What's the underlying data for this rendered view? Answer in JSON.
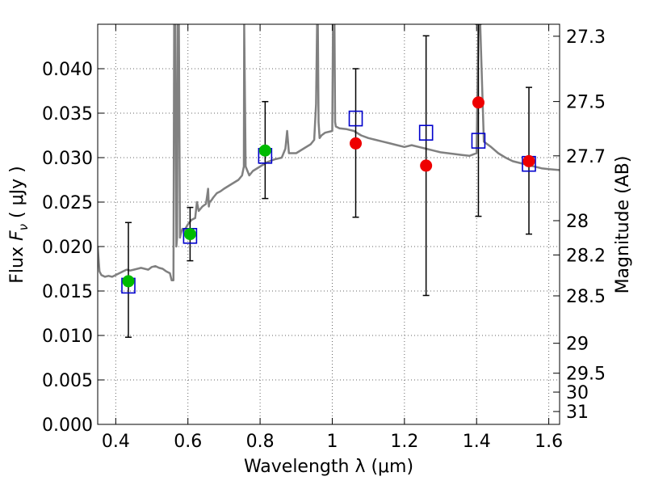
{
  "chart_data": {
    "type": "scatter",
    "xlabel": "Wavelength  λ (μm)",
    "ylabel": "Flux  F_ν  ( μJy )",
    "ylabel_parts": {
      "prefix": "Flux  ",
      "var": "F",
      "sub": "ν",
      "suffix": "  ( μJy )"
    },
    "y2label": "Magnitude (AB)",
    "xlim": [
      0.35,
      1.63
    ],
    "ylim": [
      0.0,
      0.045
    ],
    "grid": true,
    "x_ticks": [
      0.4,
      0.6,
      0.8,
      1.0,
      1.2,
      1.4,
      1.6
    ],
    "x_tick_labels": [
      "0.4",
      "0.6",
      "0.8",
      "1",
      "1.2",
      "1.4",
      "1.6"
    ],
    "y_ticks": [
      0.0,
      0.005,
      0.01,
      0.015,
      0.02,
      0.025,
      0.03,
      0.035,
      0.04
    ],
    "y_tick_labels": [
      "0.000",
      "0.005",
      "0.010",
      "0.015",
      "0.020",
      "0.025",
      "0.030",
      "0.035",
      "0.040"
    ],
    "mag_ticks": [
      {
        "mag": 27.3,
        "label": "27.3"
      },
      {
        "mag": 27.5,
        "label": "27.5"
      },
      {
        "mag": 27.7,
        "label": "27.7"
      },
      {
        "mag": 28.0,
        "label": "28"
      },
      {
        "mag": 28.2,
        "label": "28.2"
      },
      {
        "mag": 28.5,
        "label": "28.5"
      },
      {
        "mag": 29.0,
        "label": "29"
      },
      {
        "mag": 29.5,
        "label": "29.5"
      },
      {
        "mag": 30.0,
        "label": "30"
      },
      {
        "mag": 31.0,
        "label": "31"
      }
    ],
    "colors": {
      "spectrum": "#808080",
      "model_box": "#0000cc",
      "detection": "#00bb00",
      "nondetection": "#ee0000",
      "errorbar": "#000000",
      "grid": "#666666"
    },
    "series": [
      {
        "name": "observed_detections",
        "marker": "circle",
        "color": "#00bb00",
        "points": [
          {
            "x": 0.435,
            "y": 0.0161,
            "err_low": 0.0098,
            "err_high": 0.0227
          },
          {
            "x": 0.606,
            "y": 0.0214,
            "err_low": 0.0184,
            "err_high": 0.0244
          },
          {
            "x": 0.814,
            "y": 0.0308,
            "err_low": 0.0254,
            "err_high": 0.0363
          }
        ]
      },
      {
        "name": "observed_low_significance",
        "marker": "circle",
        "color": "#ee0000",
        "points": [
          {
            "x": 1.065,
            "y": 0.0316,
            "err_low": 0.0233,
            "err_high": 0.04
          },
          {
            "x": 1.26,
            "y": 0.0291,
            "err_low": 0.0145,
            "err_high": 0.0437
          },
          {
            "x": 1.405,
            "y": 0.0362,
            "err_low": 0.0234,
            "err_high": 0.045
          },
          {
            "x": 1.545,
            "y": 0.0296,
            "err_low": 0.0214,
            "err_high": 0.0379
          }
        ]
      },
      {
        "name": "model_photometry",
        "marker": "open-square",
        "color": "#0000cc",
        "points": [
          {
            "x": 0.435,
            "y": 0.0156
          },
          {
            "x": 0.606,
            "y": 0.0212
          },
          {
            "x": 0.814,
            "y": 0.0302
          },
          {
            "x": 1.065,
            "y": 0.0344
          },
          {
            "x": 1.26,
            "y": 0.0328
          },
          {
            "x": 1.405,
            "y": 0.0319
          },
          {
            "x": 1.545,
            "y": 0.0293
          }
        ]
      }
    ],
    "spectrum": {
      "name": "best_fit_template",
      "color": "#808080",
      "x": [
        0.35,
        0.355,
        0.36,
        0.37,
        0.38,
        0.39,
        0.4,
        0.41,
        0.42,
        0.43,
        0.44,
        0.45,
        0.46,
        0.47,
        0.48,
        0.49,
        0.5,
        0.51,
        0.52,
        0.53,
        0.54,
        0.55,
        0.555,
        0.56,
        0.562,
        0.565,
        0.568,
        0.57,
        0.572,
        0.575,
        0.578,
        0.58,
        0.585,
        0.59,
        0.6,
        0.61,
        0.62,
        0.625,
        0.63,
        0.64,
        0.65,
        0.655,
        0.656,
        0.658,
        0.66,
        0.665,
        0.67,
        0.68,
        0.69,
        0.7,
        0.72,
        0.74,
        0.75,
        0.755,
        0.756,
        0.76,
        0.77,
        0.78,
        0.8,
        0.82,
        0.84,
        0.86,
        0.87,
        0.875,
        0.88,
        0.9,
        0.92,
        0.94,
        0.95,
        0.955,
        0.958,
        0.96,
        0.962,
        0.965,
        0.97,
        0.98,
        1.0,
        1.002,
        1.004,
        1.006,
        1.008,
        1.01,
        1.02,
        1.04,
        1.06,
        1.08,
        1.1,
        1.12,
        1.14,
        1.16,
        1.18,
        1.2,
        1.22,
        1.24,
        1.26,
        1.28,
        1.3,
        1.32,
        1.34,
        1.36,
        1.38,
        1.4,
        1.405,
        1.41,
        1.42,
        1.44,
        1.46,
        1.48,
        1.5,
        1.52,
        1.54,
        1.56,
        1.58,
        1.6,
        1.63
      ],
      "y": [
        0.02,
        0.0172,
        0.0168,
        0.0166,
        0.0167,
        0.0166,
        0.0168,
        0.017,
        0.0172,
        0.0174,
        0.0173,
        0.0174,
        0.0175,
        0.0176,
        0.0175,
        0.0174,
        0.0177,
        0.0178,
        0.0176,
        0.0175,
        0.0172,
        0.017,
        0.0162,
        0.0162,
        0.045,
        0.045,
        0.02,
        0.021,
        0.045,
        0.045,
        0.021,
        0.0214,
        0.022,
        0.0218,
        0.0225,
        0.023,
        0.0232,
        0.025,
        0.024,
        0.0245,
        0.0248,
        0.0262,
        0.0265,
        0.0245,
        0.025,
        0.0252,
        0.0255,
        0.026,
        0.0262,
        0.0265,
        0.027,
        0.0275,
        0.028,
        0.029,
        0.045,
        0.029,
        0.028,
        0.0285,
        0.029,
        0.0295,
        0.0298,
        0.03,
        0.031,
        0.033,
        0.0305,
        0.0305,
        0.031,
        0.0315,
        0.032,
        0.036,
        0.045,
        0.045,
        0.034,
        0.0322,
        0.0325,
        0.0328,
        0.033,
        0.045,
        0.045,
        0.045,
        0.034,
        0.0335,
        0.0333,
        0.0332,
        0.033,
        0.0325,
        0.0322,
        0.032,
        0.0318,
        0.0316,
        0.0314,
        0.0312,
        0.0314,
        0.0312,
        0.031,
        0.0308,
        0.0306,
        0.0305,
        0.0304,
        0.0303,
        0.0302,
        0.0305,
        0.045,
        0.045,
        0.0318,
        0.0312,
        0.0305,
        0.03,
        0.0296,
        0.0294,
        0.0292,
        0.029,
        0.0288,
        0.0287,
        0.0286
      ]
    }
  }
}
